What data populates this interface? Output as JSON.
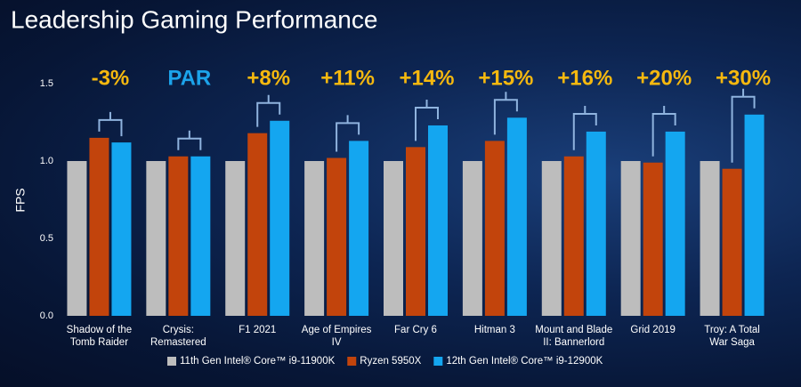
{
  "chart_data": {
    "type": "bar",
    "title": "Leadership Gaming Performance",
    "y_label": "FPS",
    "categories": [
      "Shadow of the\nTomb Raider",
      "Crysis:\nRemastered",
      "F1 2021",
      "Age of Empires\nIV",
      "Far Cry 6",
      "Hitman 3",
      "Mount and Blade\nII: Bannerlord",
      "Grid 2019",
      "Troy: A Total\nWar Saga"
    ],
    "series": [
      {
        "name": "11th Gen Intel® Core™ i9-11900K",
        "color": "#bdbdbd",
        "values": [
          1.0,
          1.0,
          1.0,
          1.0,
          1.0,
          1.0,
          1.0,
          1.0,
          1.0
        ]
      },
      {
        "name": "Ryzen 5950X",
        "color": "#c2440c",
        "values": [
          1.15,
          1.03,
          1.18,
          1.02,
          1.09,
          1.13,
          1.03,
          0.99,
          0.95
        ]
      },
      {
        "name": "12th Gen Intel® Core™ i9-12900K",
        "color": "#14a6f0",
        "values": [
          1.12,
          1.03,
          1.26,
          1.13,
          1.23,
          1.28,
          1.19,
          1.19,
          1.3
        ]
      }
    ],
    "annotations": [
      {
        "text": "-3%",
        "color": "#f5b80f"
      },
      {
        "text": "PAR",
        "color": "#1ca3ea"
      },
      {
        "text": "+8%",
        "color": "#f5b80f"
      },
      {
        "text": "+11%",
        "color": "#f5b80f"
      },
      {
        "text": "+14%",
        "color": "#f5b80f"
      },
      {
        "text": "+15%",
        "color": "#f5b80f"
      },
      {
        "text": "+16%",
        "color": "#f5b80f"
      },
      {
        "text": "+20%",
        "color": "#f5b80f"
      },
      {
        "text": "+30%",
        "color": "#f5b80f"
      }
    ],
    "ylim": [
      0,
      1.5
    ],
    "yticks": [
      {
        "value": 0,
        "label": "0.0"
      },
      0.5,
      {
        "value": 1,
        "label": "1.0"
      },
      1.5
    ],
    "grid": false,
    "legend": "bottom"
  }
}
